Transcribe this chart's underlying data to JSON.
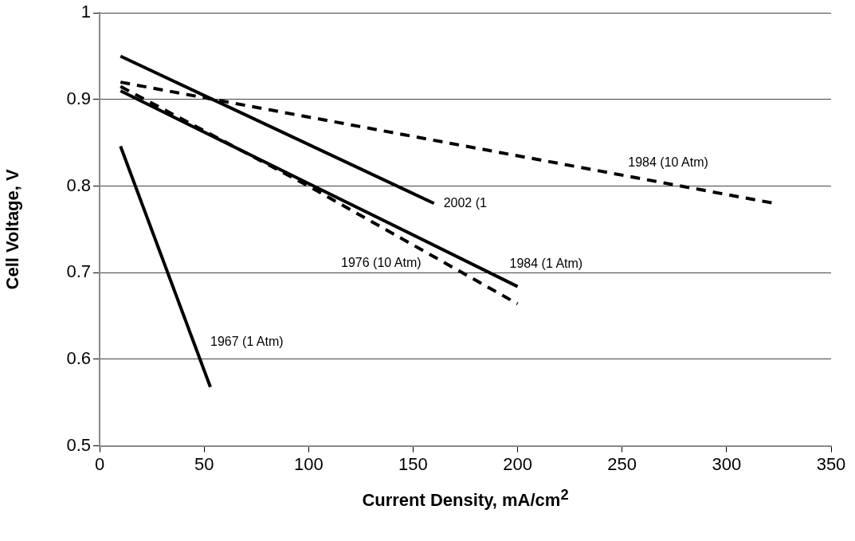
{
  "chart_data": {
    "type": "line",
    "xlabel": "Current Density, mA/cm$^{2}$",
    "ylabel": "Cell Voltage, V",
    "xlim": [
      0,
      350
    ],
    "xticks": [
      0,
      50,
      100,
      150,
      200,
      250,
      300,
      350
    ],
    "ylim": [
      0.5,
      1
    ],
    "yticks": [
      0.5,
      0.6,
      0.7,
      0.8,
      0.9,
      1
    ],
    "grid": "y",
    "legend": false,
    "marker": "none",
    "series": [
      {
        "name": "2002 (1",
        "color": "#000000",
        "line_style": "solid",
        "x": [
          10,
          160
        ],
        "values": [
          0.95,
          0.78
        ]
      },
      {
        "name": "1984 (10 Atm)",
        "color": "#000000",
        "line_style": "dashed",
        "x": [
          10,
          323
        ],
        "values": [
          0.92,
          0.78
        ]
      },
      {
        "name": "1984 (1 Atm)",
        "color": "#000000",
        "line_style": "solid",
        "x": [
          10,
          200
        ],
        "values": [
          0.91,
          0.684
        ]
      },
      {
        "name": "1976 (10 Atm)",
        "color": "#000000",
        "line_style": "dashed",
        "x": [
          10,
          100,
          200
        ],
        "values": [
          0.915,
          0.8,
          0.664
        ]
      },
      {
        "name": "1967 (1 Atm)",
        "color": "#000000",
        "line_style": "solid",
        "x": [
          10,
          53
        ],
        "values": [
          0.846,
          0.568
        ]
      }
    ]
  }
}
